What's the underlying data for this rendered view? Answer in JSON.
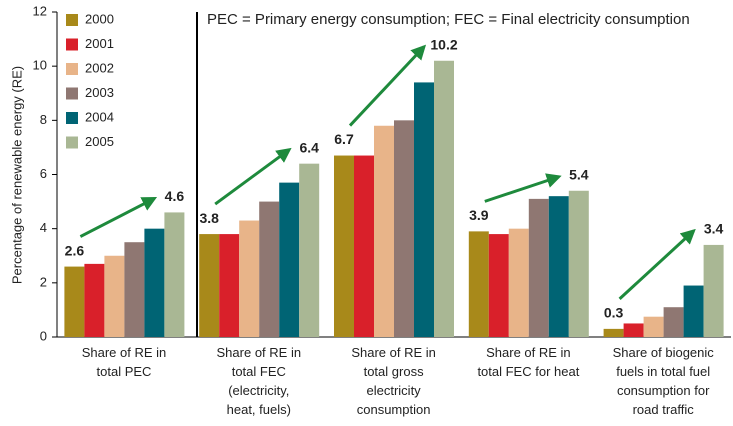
{
  "chart_data": {
    "type": "bar",
    "ylabel": "Percentage of renewable energy (RE)",
    "annotation": "PEC = Primary energy consumption; FEC = Final electricity consumption",
    "categories": [
      "Share of RE in\ntotal PEC",
      "Share of RE in\ntotal FEC\n(electricity,\nheat, fuels)",
      "Share of RE in\ntotal gross\nelectricity\nconsumption",
      "Share of RE in\ntotal FEC for heat",
      "Share of biogenic\nfuels in total fuel\nconsumption for\nroad traffic"
    ],
    "series": [
      {
        "name": "2000",
        "color": "#a8891a",
        "labels": true,
        "values": [
          2.6,
          3.8,
          6.7,
          3.9,
          0.3
        ]
      },
      {
        "name": "2001",
        "color": "#d9202a",
        "values": [
          2.7,
          3.8,
          6.7,
          3.8,
          0.5
        ]
      },
      {
        "name": "2002",
        "color": "#e8b489",
        "values": [
          3.0,
          4.3,
          7.8,
          4.0,
          0.75
        ]
      },
      {
        "name": "2003",
        "color": "#8f7772",
        "values": [
          3.5,
          5.0,
          8.0,
          5.1,
          1.1
        ]
      },
      {
        "name": "2004",
        "color": "#006474",
        "values": [
          4.0,
          5.7,
          9.4,
          5.2,
          1.9
        ]
      },
      {
        "name": "2005",
        "color": "#a9b794",
        "labels": true,
        "values": [
          4.6,
          6.4,
          10.2,
          5.4,
          3.4
        ]
      }
    ],
    "arrow_color": "#1e8a3c",
    "ylim": [
      0,
      12
    ],
    "yticks": [
      0,
      2,
      4,
      6,
      8,
      10,
      12
    ],
    "legend": "top-left"
  }
}
